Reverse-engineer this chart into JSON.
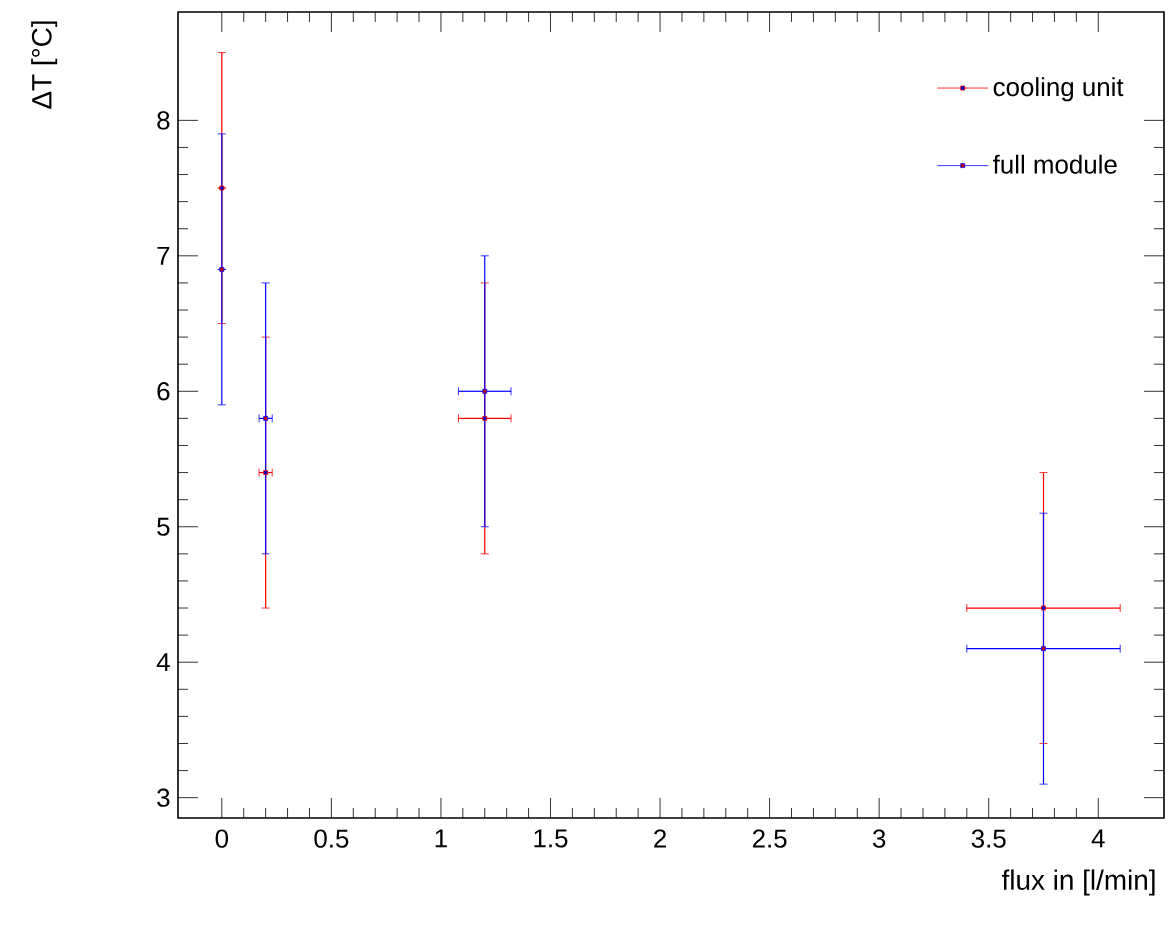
{
  "chart_data": {
    "type": "scatter",
    "xlabel": "flux in [l/min]",
    "ylabel": "ΔT [°C]",
    "x": [
      0,
      0.2,
      1.2,
      3.75
    ],
    "series": [
      {
        "name": "cooling unit",
        "color": "#ff0000",
        "values": [
          7.5,
          5.4,
          5.8,
          4.4
        ],
        "errors": [
          1,
          1,
          1,
          1
        ],
        "xerrors": [
          null,
          0.03,
          0.12,
          0.35
        ]
      },
      {
        "name": "full module",
        "color": "#0000ff",
        "values": [
          6.9,
          5.8,
          6.0,
          4.1
        ],
        "errors": [
          1,
          1,
          1,
          1
        ],
        "xerrors": [
          null,
          0.03,
          0.12,
          0.35
        ]
      }
    ],
    "xlim": [
      -0.2,
      4.3
    ],
    "ylim": [
      2.85,
      8.8
    ],
    "xticks": [
      0,
      0.5,
      1,
      1.5,
      2,
      2.5,
      3,
      3.5,
      4
    ],
    "yticks": [
      3,
      4,
      5,
      6,
      7,
      8
    ],
    "grid": false,
    "legend": "top right",
    "marker": "square"
  }
}
